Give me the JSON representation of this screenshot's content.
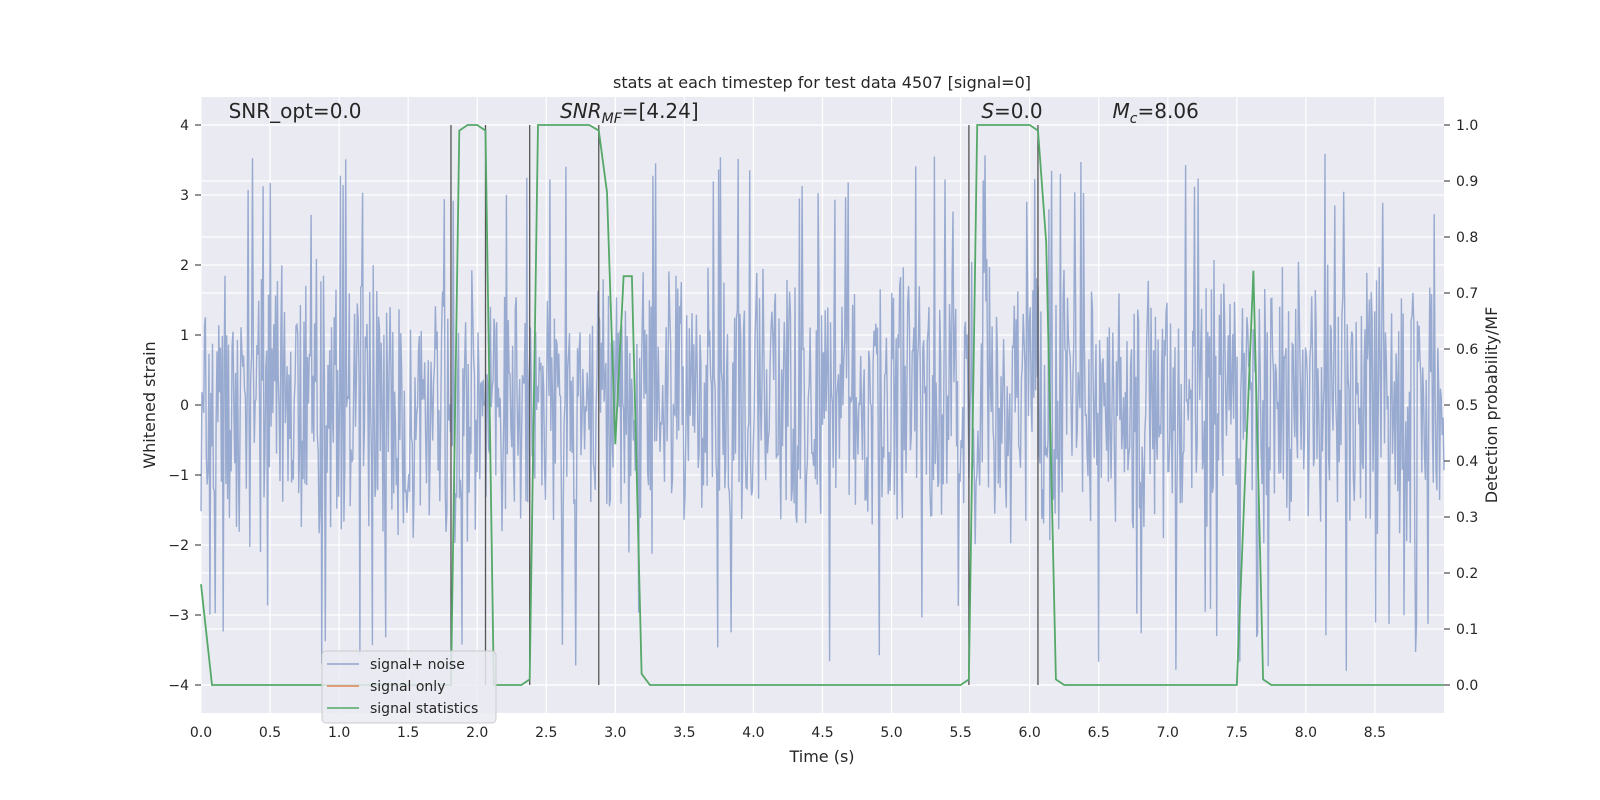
{
  "chart_data": {
    "type": "line",
    "title": "stats at each timestep for test data 4507 [signal=0]",
    "xlabel": "Time (s)",
    "ylabel": "Whitened strain",
    "ylabel_right": "Detection probability/MF",
    "xlim": [
      0.0,
      9.0
    ],
    "ylim": [
      -4.4,
      4.4
    ],
    "ylim_right": [
      -0.05,
      1.05
    ],
    "x_ticks": [
      "0.0",
      "0.5",
      "1.0",
      "1.5",
      "2.0",
      "2.5",
      "3.0",
      "3.5",
      "4.0",
      "4.5",
      "5.0",
      "5.5",
      "6.0",
      "6.5",
      "7.0",
      "7.5",
      "8.0",
      "8.5"
    ],
    "y_ticks": [
      "4",
      "3",
      "2",
      "1",
      "0",
      "−1",
      "−2",
      "−3",
      "−4"
    ],
    "y_ticks_right": [
      "1.0",
      "0.9",
      "0.8",
      "0.7",
      "0.6",
      "0.5",
      "0.4",
      "0.3",
      "0.2",
      "0.1",
      "0.0"
    ],
    "grid": true,
    "legend_placement": "lower-left",
    "annotations": [
      {
        "text": "SNR_opt=0.0",
        "x": 0.2,
        "y": 4.1
      },
      {
        "text": "SNR_MF=[4.24]",
        "x": 2.6,
        "y": 4.1
      },
      {
        "text": "S=0.0",
        "x": 5.65,
        "y": 4.1
      },
      {
        "text": "M_c=8.06",
        "x": 6.6,
        "y": 4.1
      }
    ],
    "vertical_lines": [
      1.81,
      2.06,
      2.38,
      2.88,
      5.56,
      6.06
    ],
    "series": [
      {
        "name": "signal+ noise",
        "color": "#8fa3cc",
        "kind": "noise",
        "envelope": [
          -2.2,
          2.2
        ],
        "peak_range": [
          -3.8,
          3.6
        ]
      },
      {
        "name": "signal only",
        "color": "#dd8452",
        "kind": "line",
        "x": [],
        "y": []
      },
      {
        "name": "signal statistics",
        "color": "#55a868",
        "kind": "line",
        "axis": "right",
        "x": [
          0.0,
          0.08,
          0.12,
          1.75,
          1.81,
          1.87,
          1.93,
          2.0,
          2.06,
          2.12,
          2.19,
          2.25,
          2.32,
          2.38,
          2.44,
          2.5,
          2.56,
          2.62,
          2.69,
          2.75,
          2.81,
          2.88,
          2.94,
          3.0,
          3.06,
          3.12,
          3.19,
          3.25,
          5.5,
          5.56,
          5.62,
          5.69,
          5.75,
          5.81,
          5.88,
          5.94,
          6.0,
          6.06,
          6.12,
          6.19,
          6.25,
          7.45,
          7.5,
          7.62,
          7.69,
          7.75,
          9.0
        ],
        "y": [
          0.18,
          0.0,
          0.0,
          0.0,
          0.0,
          0.99,
          1.0,
          1.0,
          0.99,
          0.0,
          0.0,
          0.0,
          0.0,
          0.01,
          1.0,
          1.0,
          1.0,
          1.0,
          1.0,
          1.0,
          1.0,
          0.99,
          0.88,
          0.43,
          0.73,
          0.73,
          0.02,
          0.0,
          0.0,
          0.01,
          1.0,
          1.0,
          1.0,
          1.0,
          1.0,
          1.0,
          1.0,
          0.99,
          0.79,
          0.01,
          0.0,
          0.0,
          0.0,
          0.74,
          0.01,
          0.0,
          0.0
        ]
      }
    ]
  }
}
